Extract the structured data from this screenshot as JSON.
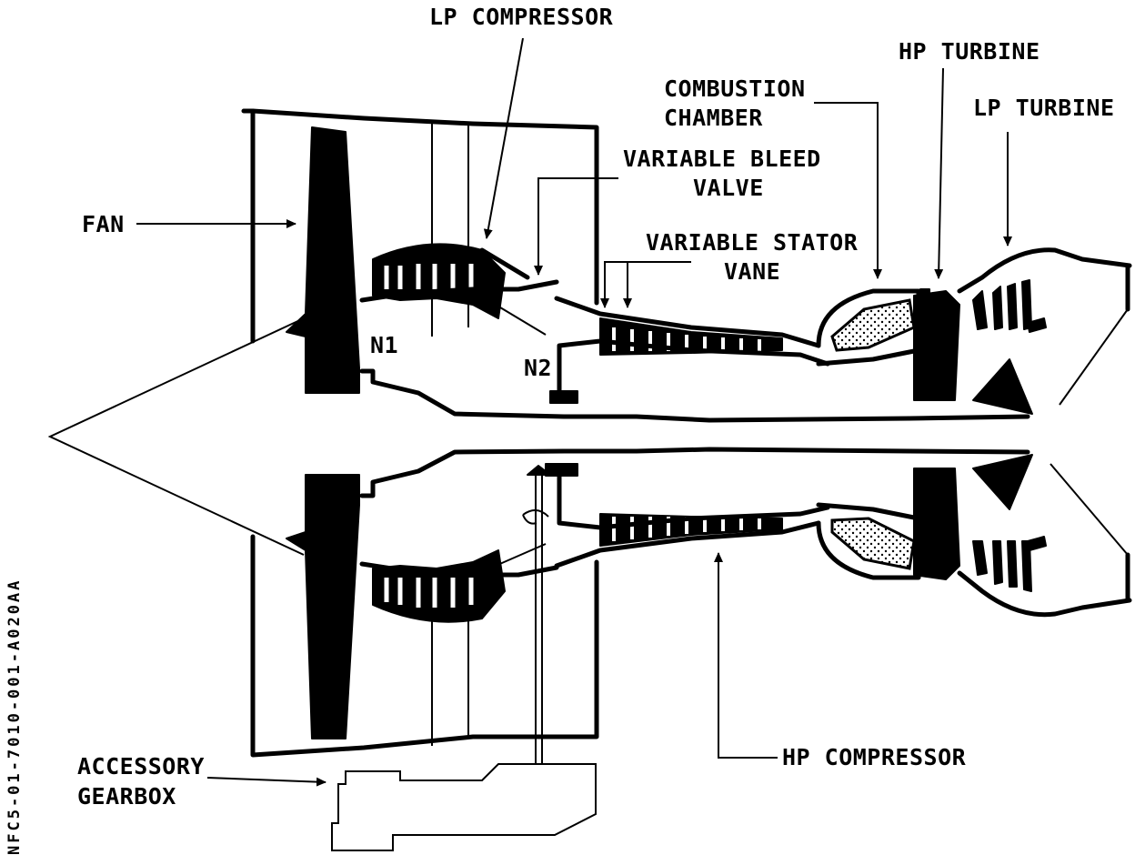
{
  "labels": {
    "lp_compressor": "LP COMPRESSOR",
    "hp_turbine": "HP TURBINE",
    "combustion_line1": "COMBUSTION",
    "combustion_line2": "CHAMBER",
    "lp_turbine": "LP TURBINE",
    "variable_bleed_line1": "VARIABLE BLEED",
    "variable_bleed_line2": "VALVE",
    "variable_stator_line1": "VARIABLE STATOR",
    "variable_stator_line2": "VANE",
    "fan": "FAN",
    "n1": "N1",
    "n2": "N2",
    "accessory_line1": "ACCESSORY",
    "accessory_line2": "GEARBOX",
    "hp_compressor": "HP COMPRESSOR"
  },
  "document_id": "NFC5-01-7010-001-A020AA"
}
